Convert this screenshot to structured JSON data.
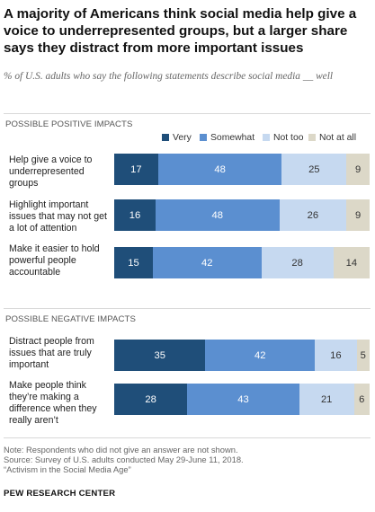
{
  "title": "A majority of Americans think social media help give a voice to underrepresented  groups, but a larger share says they distract from more important issues",
  "subtitle": "% of U.S. adults who say the following statements describe social media __ well",
  "colors": {
    "very": "#1f4e79",
    "somewhat": "#5b8fd0",
    "not_too": "#c6d9f0",
    "not_at_all": "#dcd8c8"
  },
  "chart_data": {
    "type": "bar",
    "orientation": "horizontal",
    "stacked": true,
    "xlim": [
      0,
      100
    ],
    "legend_position": "top",
    "series": [
      {
        "name": "Very",
        "color": "#1f4e79",
        "values": [
          17,
          16,
          15,
          35,
          28
        ]
      },
      {
        "name": "Somewhat",
        "color": "#5b8fd0",
        "values": [
          48,
          48,
          42,
          42,
          43
        ]
      },
      {
        "name": "Not too",
        "color": "#c6d9f0",
        "values": [
          25,
          26,
          28,
          16,
          21
        ]
      },
      {
        "name": "Not at all",
        "color": "#dcd8c8",
        "values": [
          9,
          9,
          14,
          5,
          6
        ]
      }
    ],
    "groups": [
      {
        "label": "POSSIBLE POSITIVE IMPACTS",
        "rows": [
          {
            "label": "Help give a voice to underrepresented groups",
            "values": [
              17,
              48,
              25,
              9
            ]
          },
          {
            "label": "Highlight important issues that may not get a lot of attention",
            "values": [
              16,
              48,
              26,
              9
            ]
          },
          {
            "label": "Make it easier to hold powerful people accountable",
            "values": [
              15,
              42,
              28,
              14
            ]
          }
        ]
      },
      {
        "label": "POSSIBLE NEGATIVE IMPACTS",
        "rows": [
          {
            "label": "Distract people from issues that are truly important",
            "values": [
              35,
              42,
              16,
              5
            ]
          },
          {
            "label": "Make people think they’re making a difference when they really aren’t",
            "values": [
              28,
              43,
              21,
              6
            ]
          }
        ]
      }
    ]
  },
  "notes": {
    "line1": "Note: Respondents who did not give an answer are not shown.",
    "line2": "Source: Survey of U.S. adults conducted May 29-June 11, 2018.",
    "line3": "“Activism in the Social Media Age”"
  },
  "brand": "PEW RESEARCH CENTER"
}
